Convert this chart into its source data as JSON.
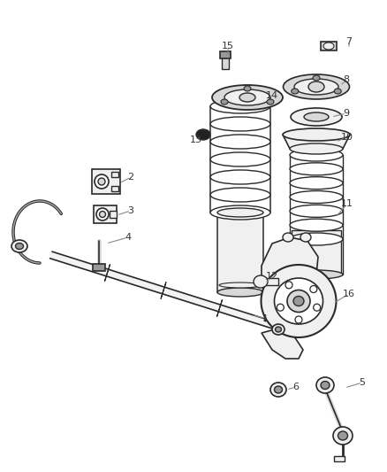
{
  "bg_color": "#ffffff",
  "line_color": "#2a2a2a",
  "fig_width": 4.38,
  "fig_height": 5.33,
  "dpi": 100,
  "label_color": "#333333",
  "leader_color": "#888888",
  "fill_light": "#f0f0f0",
  "fill_mid": "#d8d8d8",
  "fill_dark": "#999999",
  "fill_black": "#222222"
}
